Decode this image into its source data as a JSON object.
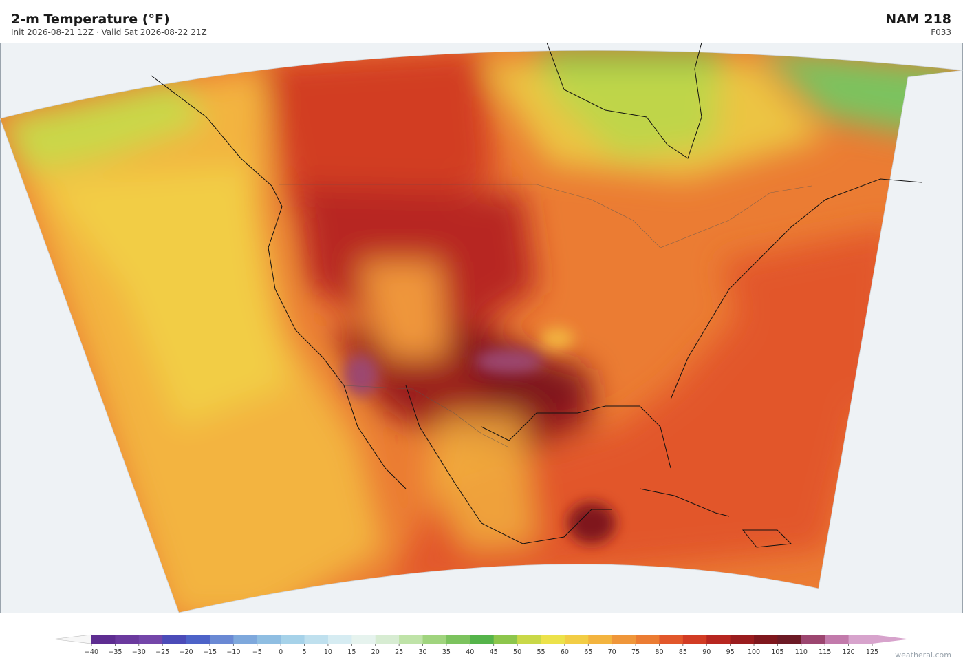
{
  "header": {
    "title": "2-m Temperature  (°F)",
    "subtitle": "Init 2026-08-21 12Z  ·  Valid Sat 2026-08-22 21Z",
    "model": "NAM  218",
    "forecast_hour": "F033"
  },
  "colorbar": {
    "ticks": [
      {
        "value": -40,
        "label": "−40"
      },
      {
        "value": -35,
        "label": "−35"
      },
      {
        "value": -30,
        "label": "−30"
      },
      {
        "value": -25,
        "label": "−25"
      },
      {
        "value": -20,
        "label": "−20"
      },
      {
        "value": -15,
        "label": "−15"
      },
      {
        "value": -10,
        "label": "−10"
      },
      {
        "value": -5,
        "label": "−5"
      },
      0,
      5,
      10,
      15,
      20,
      25,
      30,
      35,
      40,
      45,
      50,
      55,
      60,
      65,
      70,
      75,
      80,
      85,
      90,
      95,
      100,
      105,
      110,
      115,
      120,
      125
    ],
    "colors": [
      "#5e2d91",
      "#6b3a9e",
      "#7446a9",
      "#4b4bb8",
      "#4d63c8",
      "#6a89d4",
      "#7ea8dc",
      "#8fbee2",
      "#a6d2e9",
      "#bfe0ee",
      "#d6ecf2",
      "#e6f3ee",
      "#d7ecd2",
      "#bfe3a8",
      "#a0d47e",
      "#7cc35e",
      "#55b44a",
      "#8dc64c",
      "#c9d848",
      "#ece24a",
      "#f2cd45",
      "#f3b43f",
      "#ef963a",
      "#eb7c33",
      "#e2572b",
      "#d23c24",
      "#b72620",
      "#9a1c1e",
      "#7f171d",
      "#6c1a25",
      "#9c4670",
      "#c27aab",
      "#d7a3cc"
    ],
    "under_color": "#f7f7f7",
    "over_color": "#d7a3cc"
  },
  "footer": {
    "source": "weatherai.com"
  }
}
